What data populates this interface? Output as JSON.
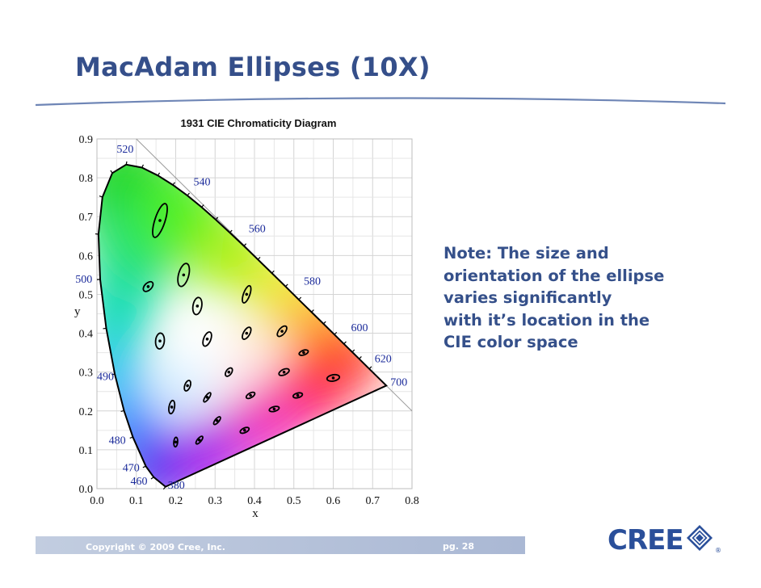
{
  "slide": {
    "title": "MacAdam Ellipses (10X)",
    "note_lines": [
      "Note:  The size and",
      "orientation of the ellipse",
      "varies significantly",
      "with it’s location in the",
      "CIE color space"
    ],
    "copyright": "Copyright © 2009 Cree, Inc.",
    "page": "pg. 28",
    "logo_text": "CREE",
    "logo_mark": "®"
  },
  "diagram": {
    "title": "1931 CIE Chromaticity Diagram",
    "xlabel": "x",
    "ylabel": "y",
    "xlim": [
      0,
      0.8
    ],
    "ylim": [
      0,
      0.9
    ],
    "x_ticks": [
      "0.0",
      "0.1",
      "0.2",
      "0.3",
      "0.4",
      "0.5",
      "0.6",
      "0.7",
      "0.8"
    ],
    "y_ticks": [
      "0.0",
      "0.1",
      "0.2",
      "0.3",
      "0.4",
      "0.5",
      "0.6",
      "0.7",
      "0.8",
      "0.9"
    ],
    "wavelengths": [
      {
        "label": "380",
        "x": 0.18,
        "y": 0.0
      },
      {
        "label": "460",
        "x": 0.085,
        "y": 0.01
      },
      {
        "label": "470",
        "x": 0.065,
        "y": 0.045
      },
      {
        "label": "480",
        "x": 0.03,
        "y": 0.115
      },
      {
        "label": "490",
        "x": 0.0,
        "y": 0.28
      },
      {
        "label": "500",
        "x": -0.055,
        "y": 0.53
      },
      {
        "label": "520",
        "x": 0.05,
        "y": 0.865
      },
      {
        "label": "540",
        "x": 0.245,
        "y": 0.78
      },
      {
        "label": "560",
        "x": 0.385,
        "y": 0.66
      },
      {
        "label": "580",
        "x": 0.525,
        "y": 0.525
      },
      {
        "label": "600",
        "x": 0.645,
        "y": 0.405
      },
      {
        "label": "620",
        "x": 0.705,
        "y": 0.325
      },
      {
        "label": "700",
        "x": 0.745,
        "y": 0.265
      }
    ],
    "ellipses": [
      {
        "x": 0.16,
        "y": 0.69,
        "a": 0.045,
        "b": 0.013,
        "angle": 72
      },
      {
        "x": 0.13,
        "y": 0.52,
        "a": 0.015,
        "b": 0.009,
        "angle": 45
      },
      {
        "x": 0.22,
        "y": 0.55,
        "a": 0.03,
        "b": 0.013,
        "angle": 75
      },
      {
        "x": 0.255,
        "y": 0.47,
        "a": 0.022,
        "b": 0.011,
        "angle": 80
      },
      {
        "x": 0.38,
        "y": 0.5,
        "a": 0.023,
        "b": 0.008,
        "angle": 70
      },
      {
        "x": 0.16,
        "y": 0.38,
        "a": 0.02,
        "b": 0.011,
        "angle": 85
      },
      {
        "x": 0.28,
        "y": 0.385,
        "a": 0.019,
        "b": 0.009,
        "angle": 68
      },
      {
        "x": 0.38,
        "y": 0.4,
        "a": 0.017,
        "b": 0.008,
        "angle": 60
      },
      {
        "x": 0.47,
        "y": 0.405,
        "a": 0.016,
        "b": 0.008,
        "angle": 50
      },
      {
        "x": 0.525,
        "y": 0.35,
        "a": 0.012,
        "b": 0.006,
        "angle": 20
      },
      {
        "x": 0.6,
        "y": 0.285,
        "a": 0.016,
        "b": 0.008,
        "angle": 10
      },
      {
        "x": 0.475,
        "y": 0.3,
        "a": 0.014,
        "b": 0.007,
        "angle": 25
      },
      {
        "x": 0.335,
        "y": 0.3,
        "a": 0.012,
        "b": 0.007,
        "angle": 55
      },
      {
        "x": 0.23,
        "y": 0.265,
        "a": 0.014,
        "b": 0.007,
        "angle": 70
      },
      {
        "x": 0.28,
        "y": 0.235,
        "a": 0.014,
        "b": 0.005,
        "angle": 55
      },
      {
        "x": 0.39,
        "y": 0.24,
        "a": 0.012,
        "b": 0.006,
        "angle": 30
      },
      {
        "x": 0.51,
        "y": 0.24,
        "a": 0.012,
        "b": 0.006,
        "angle": 15
      },
      {
        "x": 0.45,
        "y": 0.205,
        "a": 0.013,
        "b": 0.006,
        "angle": 15
      },
      {
        "x": 0.19,
        "y": 0.21,
        "a": 0.017,
        "b": 0.007,
        "angle": 80
      },
      {
        "x": 0.305,
        "y": 0.175,
        "a": 0.012,
        "b": 0.005,
        "angle": 50
      },
      {
        "x": 0.375,
        "y": 0.15,
        "a": 0.012,
        "b": 0.006,
        "angle": 25
      },
      {
        "x": 0.26,
        "y": 0.125,
        "a": 0.012,
        "b": 0.005,
        "angle": 50
      },
      {
        "x": 0.2,
        "y": 0.12,
        "a": 0.012,
        "b": 0.005,
        "angle": 85
      }
    ]
  }
}
